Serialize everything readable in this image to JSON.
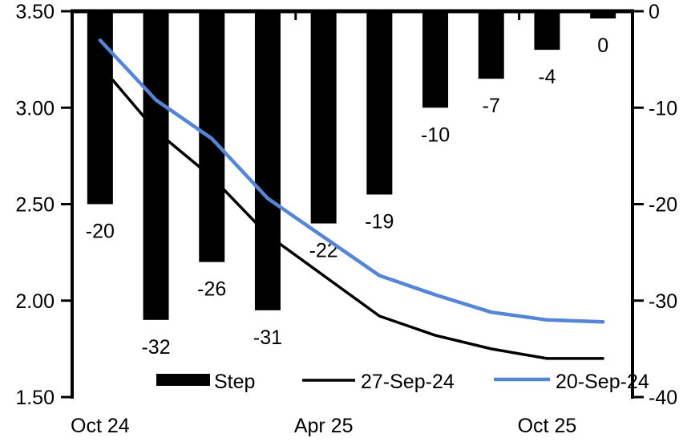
{
  "chart_data": {
    "type": "combo_bar_line",
    "n_categories": 10,
    "grid": "off",
    "background_color": "#ffffff",
    "x_axis": {
      "labels": [
        "Oct 24",
        "Apr 25",
        "Oct 25"
      ],
      "label_category_index": [
        0,
        4,
        8
      ]
    },
    "left_axis": {
      "min": 1.5,
      "max": 3.5,
      "tick_labels": [
        "3.50",
        "3.00",
        "2.50",
        "2.00",
        "1.50"
      ]
    },
    "right_axis": {
      "min": -40,
      "max": 0,
      "tick_labels": [
        "0",
        "-10",
        "-20",
        "-30",
        "-40"
      ]
    },
    "series": [
      {
        "name": "Step",
        "type": "bar",
        "axis": "right",
        "color": "#000000",
        "values": [
          -20,
          -32,
          -26,
          -31,
          -22,
          -19,
          -10,
          -7,
          -4,
          0
        ],
        "value_labels": [
          "-20",
          "-32",
          "-26",
          "-31",
          "-22",
          "-19",
          "-10",
          "-7",
          "-4",
          "0"
        ]
      },
      {
        "name": "27-Sep-24",
        "type": "line",
        "axis": "left",
        "color": "#000000",
        "values": [
          3.22,
          2.88,
          2.64,
          2.34,
          2.13,
          1.92,
          1.82,
          1.75,
          1.7,
          1.7
        ]
      },
      {
        "name": "20-Sep-24",
        "type": "line",
        "axis": "left",
        "color": "#5585D5",
        "values": [
          3.35,
          3.04,
          2.84,
          2.53,
          2.33,
          2.13,
          2.03,
          1.94,
          1.9,
          1.89
        ]
      }
    ],
    "legend": {
      "position": "bottom",
      "items": [
        {
          "label": "Step",
          "swatch": "bar",
          "color": "#000000"
        },
        {
          "label": "27-Sep-24",
          "swatch": "line",
          "color": "#000000"
        },
        {
          "label": "20-Sep-24",
          "swatch": "line",
          "color": "#5585D5"
        }
      ]
    }
  }
}
